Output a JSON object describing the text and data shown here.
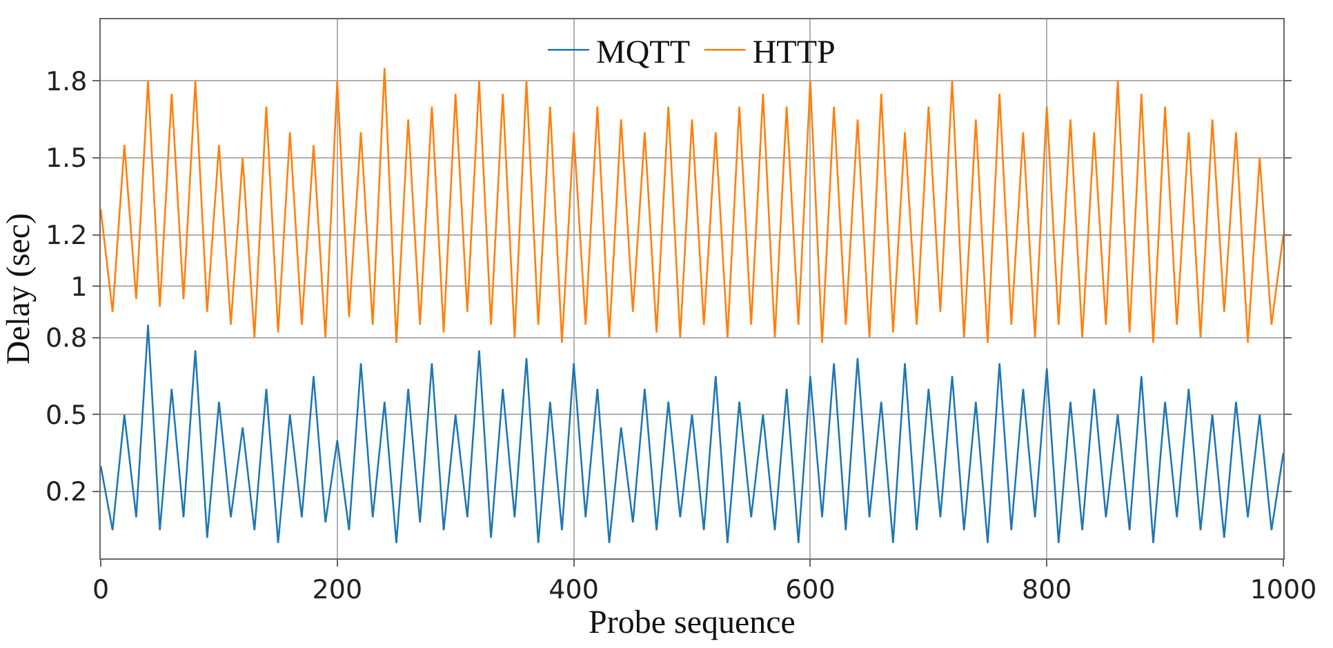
{
  "chart_data": {
    "type": "line",
    "xlabel": "Probe sequence",
    "ylabel": "Delay (sec)",
    "x": [
      0,
      10,
      20,
      30,
      40,
      50,
      60,
      70,
      80,
      90,
      100,
      110,
      120,
      130,
      140,
      150,
      160,
      170,
      180,
      190,
      200,
      210,
      220,
      230,
      240,
      250,
      260,
      270,
      280,
      290,
      300,
      310,
      320,
      330,
      340,
      350,
      360,
      370,
      380,
      390,
      400,
      410,
      420,
      430,
      440,
      450,
      460,
      470,
      480,
      490,
      500,
      510,
      520,
      530,
      540,
      550,
      560,
      570,
      580,
      590,
      600,
      610,
      620,
      630,
      640,
      650,
      660,
      670,
      680,
      690,
      700,
      710,
      720,
      730,
      740,
      750,
      760,
      770,
      780,
      790,
      800,
      810,
      820,
      830,
      840,
      850,
      860,
      870,
      880,
      890,
      900,
      910,
      920,
      930,
      940,
      950,
      960,
      970,
      980,
      990,
      1000
    ],
    "series": [
      {
        "name": "MQTT",
        "color": "#1f77b4",
        "values": [
          0.3,
          0.05,
          0.5,
          0.1,
          0.85,
          0.05,
          0.6,
          0.1,
          0.75,
          0.02,
          0.55,
          0.1,
          0.45,
          0.05,
          0.6,
          0.0,
          0.5,
          0.1,
          0.65,
          0.08,
          0.4,
          0.05,
          0.7,
          0.1,
          0.55,
          0.0,
          0.6,
          0.08,
          0.7,
          0.05,
          0.5,
          0.1,
          0.75,
          0.02,
          0.6,
          0.1,
          0.72,
          0.0,
          0.55,
          0.05,
          0.7,
          0.1,
          0.6,
          0.0,
          0.45,
          0.08,
          0.6,
          0.05,
          0.55,
          0.1,
          0.5,
          0.05,
          0.65,
          0.0,
          0.55,
          0.1,
          0.5,
          0.05,
          0.6,
          0.0,
          0.65,
          0.1,
          0.7,
          0.05,
          0.72,
          0.1,
          0.55,
          0.0,
          0.7,
          0.05,
          0.6,
          0.1,
          0.65,
          0.05,
          0.55,
          0.0,
          0.7,
          0.05,
          0.6,
          0.1,
          0.68,
          0.0,
          0.55,
          0.05,
          0.6,
          0.1,
          0.5,
          0.05,
          0.65,
          0.0,
          0.55,
          0.1,
          0.6,
          0.05,
          0.5,
          0.02,
          0.55,
          0.1,
          0.5,
          0.05,
          0.35
        ]
      },
      {
        "name": "HTTP",
        "color": "#ff7f0e",
        "values": [
          1.3,
          0.9,
          1.55,
          0.95,
          1.8,
          0.92,
          1.75,
          0.95,
          1.8,
          0.9,
          1.55,
          0.85,
          1.5,
          0.8,
          1.7,
          0.82,
          1.6,
          0.85,
          1.55,
          0.8,
          1.8,
          0.88,
          1.6,
          0.85,
          1.85,
          0.78,
          1.65,
          0.85,
          1.7,
          0.82,
          1.75,
          0.9,
          1.8,
          0.85,
          1.75,
          0.8,
          1.8,
          0.85,
          1.7,
          0.78,
          1.6,
          0.85,
          1.7,
          0.8,
          1.65,
          0.9,
          1.6,
          0.82,
          1.7,
          0.8,
          1.65,
          0.85,
          1.6,
          0.8,
          1.7,
          0.85,
          1.75,
          0.8,
          1.7,
          0.85,
          1.8,
          0.78,
          1.7,
          0.85,
          1.65,
          0.8,
          1.75,
          0.82,
          1.6,
          0.85,
          1.7,
          0.9,
          1.8,
          0.8,
          1.65,
          0.78,
          1.75,
          0.85,
          1.6,
          0.8,
          1.7,
          0.85,
          1.65,
          0.8,
          1.6,
          0.85,
          1.8,
          0.82,
          1.75,
          0.78,
          1.7,
          0.85,
          1.6,
          0.8,
          1.65,
          0.9,
          1.6,
          0.78,
          1.5,
          0.85,
          1.2
        ]
      }
    ],
    "xlim": [
      0,
      1000
    ],
    "xticks": [
      0,
      200,
      400,
      600,
      800,
      1000
    ],
    "ylim": [
      -0.06,
      2.04
    ],
    "yticks": [
      0.2,
      0.5,
      0.8,
      1,
      1.2,
      1.5,
      1.8
    ],
    "grid": true,
    "legend": "top",
    "marker": "none",
    "line_style": "solid"
  }
}
